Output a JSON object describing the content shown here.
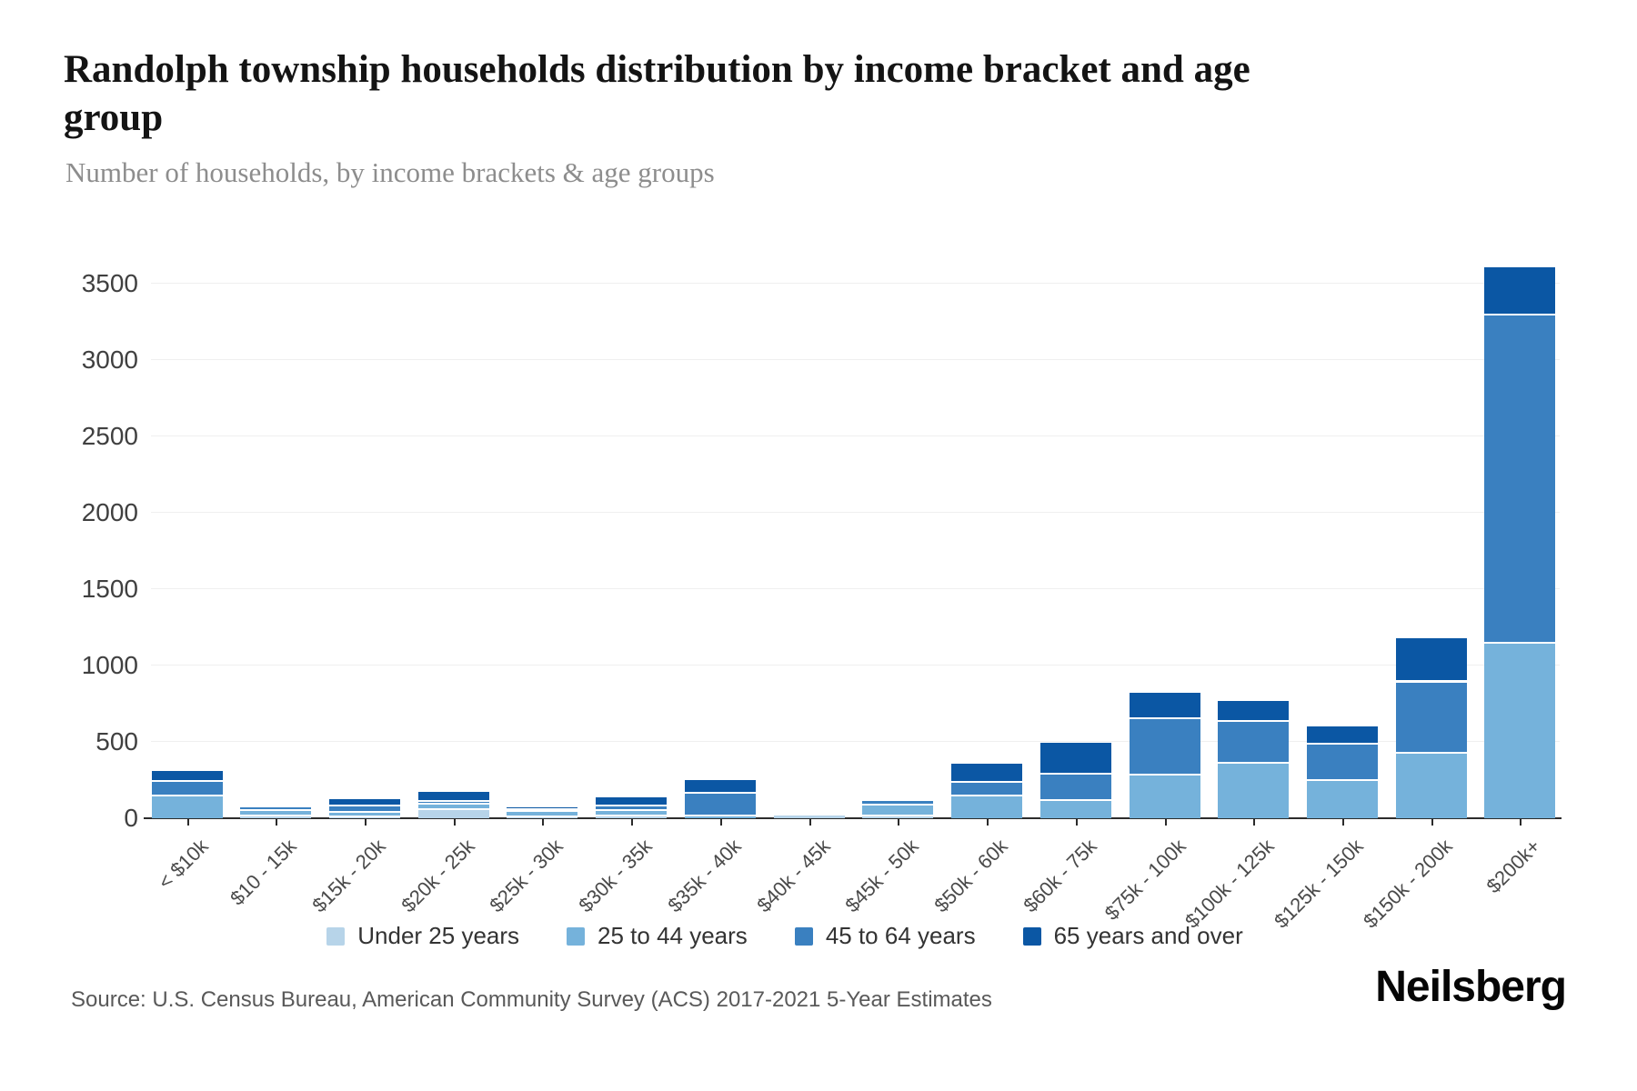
{
  "header": {
    "title": "Randolph township households distribution by income bracket and age group",
    "subtitle": "Number of households, by income brackets & age groups"
  },
  "footer": {
    "source": "Source: U.S. Census Bureau, American Community Survey (ACS) 2017-2021 5-Year Estimates",
    "brand": "Neilsberg"
  },
  "colors": {
    "under_25": "#b7d4e9",
    "25_to_44": "#75b2db",
    "45_to_64": "#3a80c0",
    "65_and_over": "#0b57a4",
    "axis_line": "#2b2b2b",
    "gridline": "#efefef"
  },
  "chart_data": {
    "type": "bar",
    "stacked": true,
    "title": "Randolph township households distribution by income bracket and age group",
    "subtitle": "Number of households, by income brackets & age groups",
    "xlabel": "",
    "ylabel": "",
    "ylim": [
      0,
      3700
    ],
    "yticks": [
      0,
      500,
      1000,
      1500,
      2000,
      2500,
      3000,
      3500
    ],
    "grid": true,
    "legend_position": "bottom",
    "categories": [
      "< $10k",
      "$10 - 15k",
      "$15k - 20k",
      "$20k - 25k",
      "$25k - 30k",
      "$30k - 35k",
      "$35k - 40k",
      "$40k - 45k",
      "$45k - 50k",
      "$50k - 60k",
      "$60k - 75k",
      "$75k - 100k",
      "$100k - 125k",
      "$125k - 150k",
      "$150k - 200k",
      "$200k+"
    ],
    "series": [
      {
        "name": "Under 25 years",
        "color": "#b7d4e9",
        "values": [
          0,
          10,
          5,
          55,
          5,
          10,
          0,
          20,
          10,
          0,
          0,
          0,
          0,
          0,
          0,
          0
        ]
      },
      {
        "name": "25 to 44 years",
        "color": "#75b2db",
        "values": [
          145,
          40,
          30,
          35,
          35,
          40,
          10,
          5,
          75,
          140,
          115,
          280,
          360,
          245,
          420,
          1140
        ]
      },
      {
        "name": "45 to 64 years",
        "color": "#3a80c0",
        "values": [
          95,
          20,
          40,
          20,
          15,
          30,
          150,
          10,
          30,
          95,
          170,
          370,
          270,
          240,
          470,
          2150
        ]
      },
      {
        "name": "65 years and over",
        "color": "#0b57a4",
        "values": [
          70,
          15,
          50,
          60,
          15,
          55,
          90,
          0,
          0,
          125,
          210,
          170,
          140,
          115,
          290,
          320
        ]
      }
    ],
    "totals": [
      310,
      85,
      125,
      170,
      70,
      135,
      250,
      35,
      115,
      360,
      495,
      820,
      770,
      600,
      1180,
      3610
    ]
  }
}
